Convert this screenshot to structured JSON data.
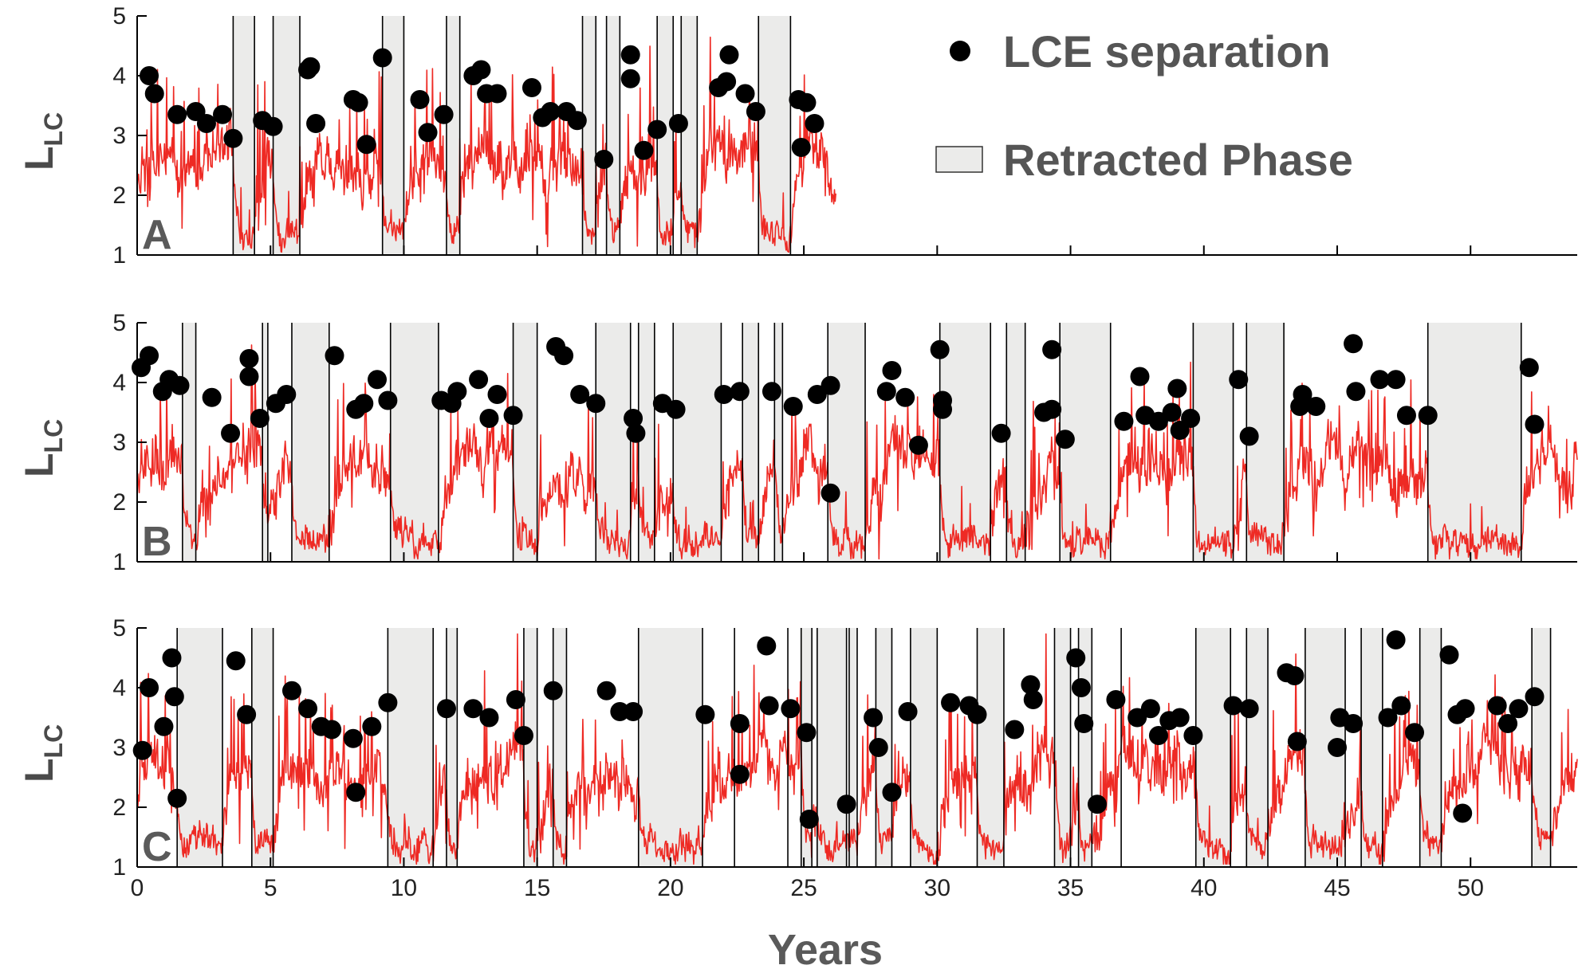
{
  "chart_data": {
    "type": "line",
    "xlabel": "Years",
    "xlim": [
      0,
      54
    ],
    "xticks": [
      0,
      5,
      10,
      15,
      20,
      25,
      30,
      35,
      40,
      45,
      50
    ],
    "ylim": [
      1,
      5
    ],
    "yticks": [
      1,
      2,
      3,
      4,
      5
    ],
    "colors": {
      "series": "#ee2a24",
      "retracted": "#ebebea",
      "dots": "#000000",
      "axis": "#000000"
    },
    "legend": {
      "position": "top-right",
      "items": [
        {
          "label": "LCE separation",
          "marker": "filled-circle"
        },
        {
          "label": "Retracted Phase",
          "marker": "gray-box"
        }
      ]
    },
    "panels": [
      {
        "label": "A",
        "ylabel": "L",
        "ylabel_sub": "LC",
        "series_end": 26.2,
        "retracted_phases": [
          [
            3.6,
            4.4
          ],
          [
            5.1,
            6.1
          ],
          [
            9.2,
            10.0
          ],
          [
            11.6,
            12.1
          ],
          [
            16.7,
            17.2
          ],
          [
            17.6,
            18.1
          ],
          [
            19.5,
            20.1
          ],
          [
            20.4,
            21.0
          ],
          [
            23.3,
            24.5
          ]
        ],
        "boundary_lines": [
          3.6,
          4.4,
          5.1,
          6.1,
          9.2,
          10.0,
          11.6,
          12.1,
          16.7,
          17.2,
          17.6,
          18.1,
          19.5,
          20.1,
          20.4,
          21.0,
          23.3,
          24.5
        ],
        "lce_separation": [
          [
            0.45,
            4.0
          ],
          [
            0.65,
            3.7
          ],
          [
            1.5,
            3.35
          ],
          [
            2.2,
            3.4
          ],
          [
            2.6,
            3.2
          ],
          [
            3.2,
            3.35
          ],
          [
            3.6,
            2.95
          ],
          [
            4.7,
            3.25
          ],
          [
            5.1,
            3.15
          ],
          [
            6.4,
            4.1
          ],
          [
            6.5,
            4.15
          ],
          [
            6.7,
            3.2
          ],
          [
            8.1,
            3.6
          ],
          [
            8.3,
            3.55
          ],
          [
            8.6,
            2.85
          ],
          [
            9.2,
            4.3
          ],
          [
            10.6,
            3.6
          ],
          [
            10.9,
            3.05
          ],
          [
            11.5,
            3.35
          ],
          [
            12.6,
            4.0
          ],
          [
            12.9,
            4.1
          ],
          [
            13.1,
            3.7
          ],
          [
            13.5,
            3.7
          ],
          [
            14.8,
            3.8
          ],
          [
            15.2,
            3.3
          ],
          [
            15.5,
            3.4
          ],
          [
            16.1,
            3.4
          ],
          [
            16.5,
            3.25
          ],
          [
            17.5,
            2.6
          ],
          [
            18.5,
            3.95
          ],
          [
            18.5,
            4.35
          ],
          [
            19.0,
            2.75
          ],
          [
            19.5,
            3.1
          ],
          [
            20.3,
            3.2
          ],
          [
            21.8,
            3.8
          ],
          [
            22.1,
            3.9
          ],
          [
            22.2,
            4.35
          ],
          [
            22.8,
            3.7
          ],
          [
            23.2,
            3.4
          ],
          [
            24.8,
            3.6
          ],
          [
            25.1,
            3.55
          ],
          [
            24.9,
            2.8
          ],
          [
            25.4,
            3.2
          ]
        ]
      },
      {
        "label": "B",
        "ylabel": "L",
        "ylabel_sub": "LC",
        "series_end": 54,
        "retracted_phases": [
          [
            1.7,
            2.2
          ],
          [
            4.7,
            4.9
          ],
          [
            5.8,
            7.2
          ],
          [
            9.5,
            11.3
          ],
          [
            14.1,
            15.0
          ],
          [
            17.2,
            18.5
          ],
          [
            18.8,
            19.4
          ],
          [
            20.1,
            21.9
          ],
          [
            22.7,
            23.3
          ],
          [
            23.9,
            24.2
          ],
          [
            25.9,
            27.3
          ],
          [
            30.1,
            32.0
          ],
          [
            32.6,
            33.3
          ],
          [
            34.6,
            36.5
          ],
          [
            39.6,
            41.1
          ],
          [
            41.6,
            43.0
          ],
          [
            48.4,
            51.9
          ]
        ],
        "boundary_lines": [
          1.7,
          2.2,
          4.7,
          4.9,
          5.8,
          7.2,
          9.5,
          11.3,
          14.1,
          15.0,
          17.2,
          18.5,
          18.8,
          19.4,
          20.1,
          21.9,
          22.7,
          23.3,
          23.9,
          24.2,
          25.9,
          27.3,
          30.1,
          32.0,
          32.6,
          33.3,
          34.6,
          36.5,
          39.6,
          41.1,
          41.6,
          43.0,
          48.4,
          51.9
        ],
        "lce_separation": [
          [
            0.15,
            4.25
          ],
          [
            0.45,
            4.45
          ],
          [
            0.95,
            3.85
          ],
          [
            1.2,
            4.05
          ],
          [
            1.6,
            3.95
          ],
          [
            2.8,
            3.75
          ],
          [
            3.5,
            3.15
          ],
          [
            4.2,
            4.4
          ],
          [
            4.2,
            4.1
          ],
          [
            4.6,
            3.4
          ],
          [
            5.2,
            3.65
          ],
          [
            5.6,
            3.8
          ],
          [
            7.4,
            4.45
          ],
          [
            8.2,
            3.55
          ],
          [
            8.5,
            3.65
          ],
          [
            9.0,
            4.05
          ],
          [
            9.4,
            3.7
          ],
          [
            11.4,
            3.7
          ],
          [
            11.8,
            3.65
          ],
          [
            12.0,
            3.85
          ],
          [
            12.8,
            4.05
          ],
          [
            13.2,
            3.4
          ],
          [
            13.5,
            3.8
          ],
          [
            14.1,
            3.45
          ],
          [
            15.7,
            4.6
          ],
          [
            16.0,
            4.45
          ],
          [
            16.6,
            3.8
          ],
          [
            17.2,
            3.65
          ],
          [
            18.6,
            3.4
          ],
          [
            18.7,
            3.15
          ],
          [
            19.7,
            3.65
          ],
          [
            20.2,
            3.55
          ],
          [
            22.0,
            3.8
          ],
          [
            22.6,
            3.85
          ],
          [
            23.8,
            3.85
          ],
          [
            24.6,
            3.6
          ],
          [
            25.5,
            3.8
          ],
          [
            26.0,
            3.95
          ],
          [
            26.0,
            2.15
          ],
          [
            28.1,
            3.85
          ],
          [
            28.3,
            4.2
          ],
          [
            28.8,
            3.75
          ],
          [
            29.3,
            2.95
          ],
          [
            30.1,
            4.55
          ],
          [
            30.2,
            3.7
          ],
          [
            30.2,
            3.55
          ],
          [
            32.4,
            3.15
          ],
          [
            34.0,
            3.5
          ],
          [
            34.3,
            4.55
          ],
          [
            34.3,
            3.55
          ],
          [
            34.8,
            3.05
          ],
          [
            37.0,
            3.35
          ],
          [
            37.6,
            4.1
          ],
          [
            37.8,
            3.45
          ],
          [
            38.3,
            3.35
          ],
          [
            38.8,
            3.5
          ],
          [
            39.0,
            3.9
          ],
          [
            39.1,
            3.2
          ],
          [
            39.5,
            3.4
          ],
          [
            41.3,
            4.05
          ],
          [
            41.7,
            3.1
          ],
          [
            43.6,
            3.6
          ],
          [
            43.7,
            3.8
          ],
          [
            44.2,
            3.6
          ],
          [
            45.6,
            4.65
          ],
          [
            45.7,
            3.85
          ],
          [
            46.6,
            4.05
          ],
          [
            47.2,
            4.05
          ],
          [
            47.6,
            3.45
          ],
          [
            48.4,
            3.45
          ],
          [
            52.2,
            4.25
          ],
          [
            52.4,
            3.3
          ]
        ]
      },
      {
        "label": "C",
        "ylabel": "L",
        "ylabel_sub": "LC",
        "series_end": 54,
        "retracted_phases": [
          [
            1.5,
            3.2
          ],
          [
            4.3,
            5.1
          ],
          [
            9.4,
            11.1
          ],
          [
            11.6,
            12.0
          ],
          [
            14.5,
            15.0
          ],
          [
            15.6,
            16.1
          ],
          [
            18.8,
            21.2
          ],
          [
            24.9,
            25.3
          ],
          [
            25.5,
            26.6
          ],
          [
            26.7,
            27.0
          ],
          [
            27.7,
            28.3
          ],
          [
            29.0,
            30.0
          ],
          [
            31.5,
            32.5
          ],
          [
            34.4,
            35.0
          ],
          [
            35.3,
            35.8
          ],
          [
            39.7,
            41.0
          ],
          [
            41.6,
            42.4
          ],
          [
            43.8,
            45.3
          ],
          [
            45.9,
            46.7
          ],
          [
            48.1,
            48.9
          ],
          [
            52.3,
            53.0
          ]
        ],
        "boundary_lines": [
          1.5,
          3.2,
          4.3,
          5.1,
          9.4,
          11.1,
          11.6,
          12.0,
          14.5,
          15.0,
          15.6,
          16.1,
          18.8,
          21.2,
          22.4,
          24.4,
          24.9,
          25.3,
          25.5,
          26.6,
          26.7,
          27.0,
          27.7,
          28.3,
          29.0,
          30.0,
          31.5,
          32.5,
          34.4,
          35.0,
          35.3,
          35.8,
          36.9,
          39.7,
          41.0,
          41.6,
          42.4,
          43.8,
          45.3,
          45.9,
          46.7,
          48.1,
          48.9,
          52.3,
          53.0
        ],
        "lce_separation": [
          [
            0.2,
            2.95
          ],
          [
            0.45,
            4.0
          ],
          [
            1.0,
            3.35
          ],
          [
            1.3,
            4.5
          ],
          [
            1.4,
            3.85
          ],
          [
            1.5,
            2.15
          ],
          [
            3.7,
            4.45
          ],
          [
            4.1,
            3.55
          ],
          [
            5.8,
            3.95
          ],
          [
            6.4,
            3.65
          ],
          [
            6.9,
            3.35
          ],
          [
            7.3,
            3.3
          ],
          [
            8.1,
            3.15
          ],
          [
            8.2,
            2.25
          ],
          [
            8.8,
            3.35
          ],
          [
            9.4,
            3.75
          ],
          [
            11.6,
            3.65
          ],
          [
            12.6,
            3.65
          ],
          [
            13.2,
            3.5
          ],
          [
            14.2,
            3.8
          ],
          [
            14.5,
            3.2
          ],
          [
            15.6,
            3.95
          ],
          [
            17.6,
            3.95
          ],
          [
            18.1,
            3.6
          ],
          [
            18.6,
            3.6
          ],
          [
            21.3,
            3.55
          ],
          [
            22.6,
            3.4
          ],
          [
            22.6,
            2.55
          ],
          [
            23.6,
            4.7
          ],
          [
            23.7,
            3.7
          ],
          [
            24.5,
            3.65
          ],
          [
            25.1,
            3.25
          ],
          [
            25.2,
            1.8
          ],
          [
            26.6,
            2.05
          ],
          [
            27.6,
            3.5
          ],
          [
            27.8,
            3.0
          ],
          [
            28.3,
            2.25
          ],
          [
            28.9,
            3.6
          ],
          [
            30.5,
            3.75
          ],
          [
            31.2,
            3.7
          ],
          [
            31.5,
            3.55
          ],
          [
            32.9,
            3.3
          ],
          [
            33.5,
            4.05
          ],
          [
            33.6,
            3.8
          ],
          [
            35.2,
            4.5
          ],
          [
            35.4,
            4.0
          ],
          [
            35.5,
            3.4
          ],
          [
            36.0,
            2.05
          ],
          [
            36.7,
            3.8
          ],
          [
            37.5,
            3.5
          ],
          [
            38.0,
            3.65
          ],
          [
            38.3,
            3.2
          ],
          [
            38.7,
            3.45
          ],
          [
            39.1,
            3.5
          ],
          [
            39.6,
            3.2
          ],
          [
            41.1,
            3.7
          ],
          [
            41.7,
            3.65
          ],
          [
            43.1,
            4.25
          ],
          [
            43.4,
            4.2
          ],
          [
            43.5,
            3.1
          ],
          [
            45.0,
            3.0
          ],
          [
            45.1,
            3.5
          ],
          [
            45.6,
            3.4
          ],
          [
            46.9,
            3.5
          ],
          [
            47.2,
            4.8
          ],
          [
            47.4,
            3.7
          ],
          [
            47.9,
            3.25
          ],
          [
            49.2,
            4.55
          ],
          [
            49.5,
            3.55
          ],
          [
            49.7,
            1.9
          ],
          [
            49.8,
            3.65
          ],
          [
            51.0,
            3.7
          ],
          [
            51.4,
            3.4
          ],
          [
            51.8,
            3.65
          ],
          [
            52.4,
            3.85
          ]
        ]
      }
    ]
  }
}
